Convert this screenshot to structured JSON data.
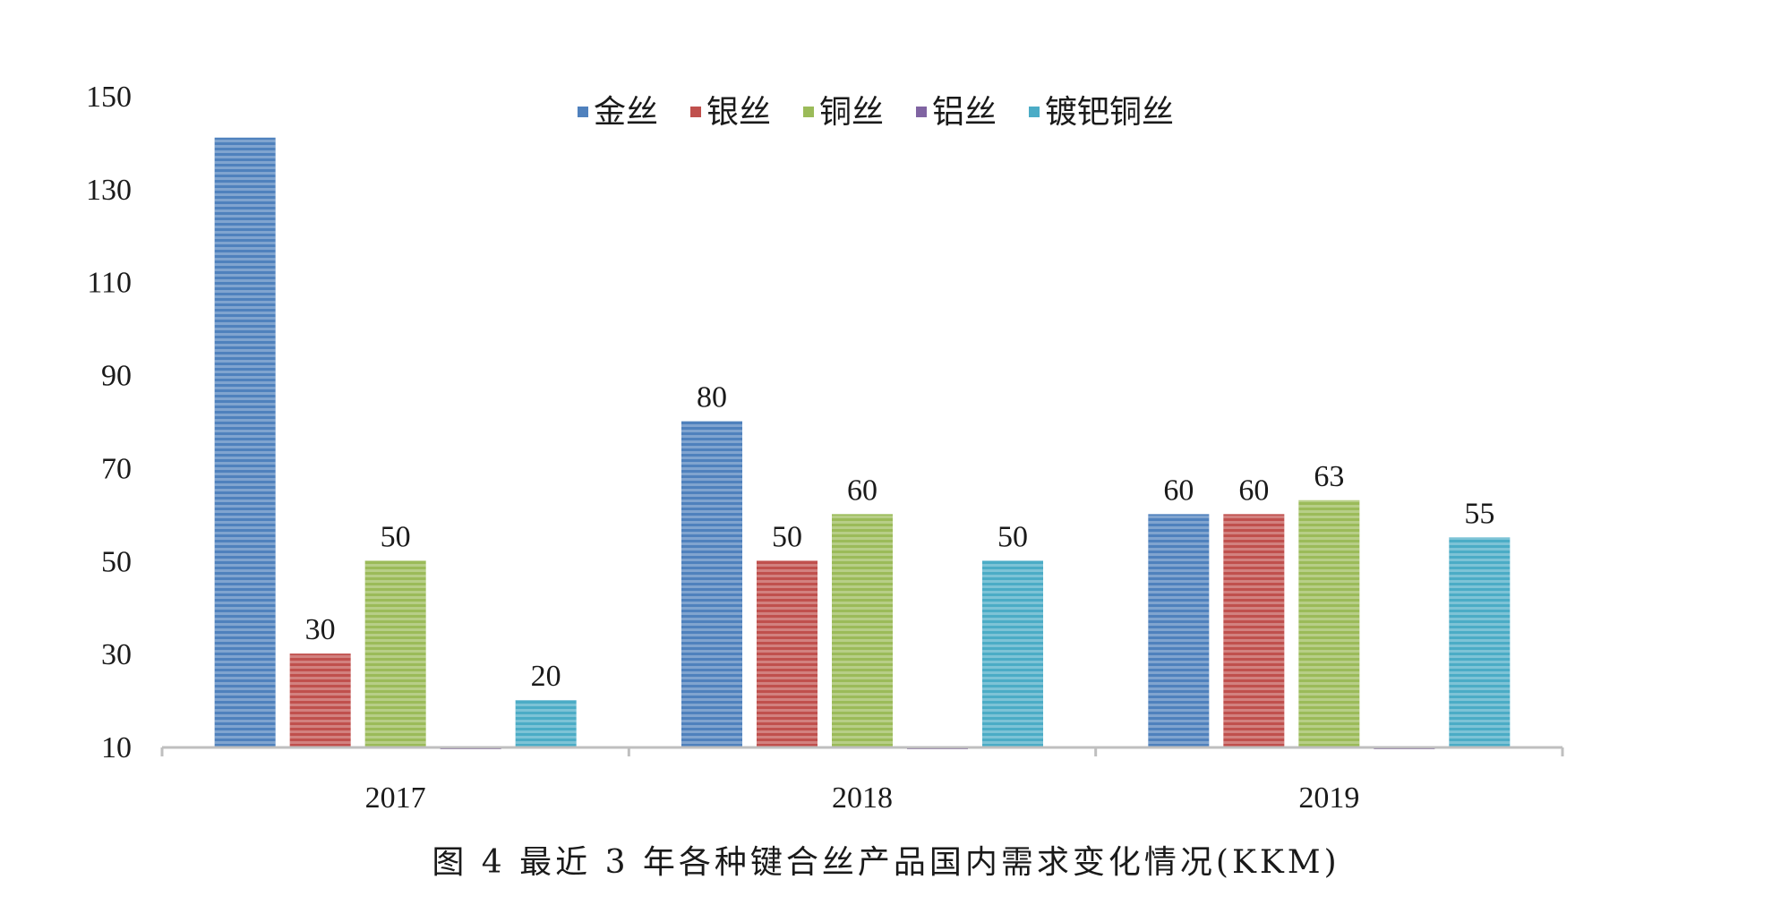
{
  "chart_data": {
    "type": "bar",
    "categories": [
      "2017",
      "2018",
      "2019"
    ],
    "series": [
      {
        "name": "金丝",
        "values": [
          141,
          80,
          60
        ],
        "color": "#4f81bd",
        "labels": [
          "",
          "80",
          "60"
        ]
      },
      {
        "name": "银丝",
        "values": [
          30,
          50,
          60
        ],
        "color": "#c0504d",
        "labels": [
          "30",
          "50",
          "60"
        ]
      },
      {
        "name": "铜丝",
        "values": [
          50,
          60,
          63
        ],
        "color": "#9bbb59",
        "labels": [
          "50",
          "60",
          "63"
        ]
      },
      {
        "name": "铝丝",
        "values": [
          10,
          10,
          10
        ],
        "color": "#8064a2",
        "labels": [
          "",
          "",
          ""
        ]
      },
      {
        "name": "镀钯铜丝",
        "values": [
          20,
          50,
          55
        ],
        "color": "#4bacc6",
        "labels": [
          "20",
          "50",
          "55"
        ]
      }
    ],
    "title": "",
    "xlabel": "",
    "ylabel": "",
    "ylim": [
      10,
      150
    ],
    "yticks": [
      "10",
      "30",
      "50",
      "70",
      "90",
      "110",
      "130",
      "150"
    ],
    "grid": false,
    "legend_position": "top"
  },
  "caption": "图 4  最近 3 年各种键合丝产品国内需求变化情况(KKM)"
}
